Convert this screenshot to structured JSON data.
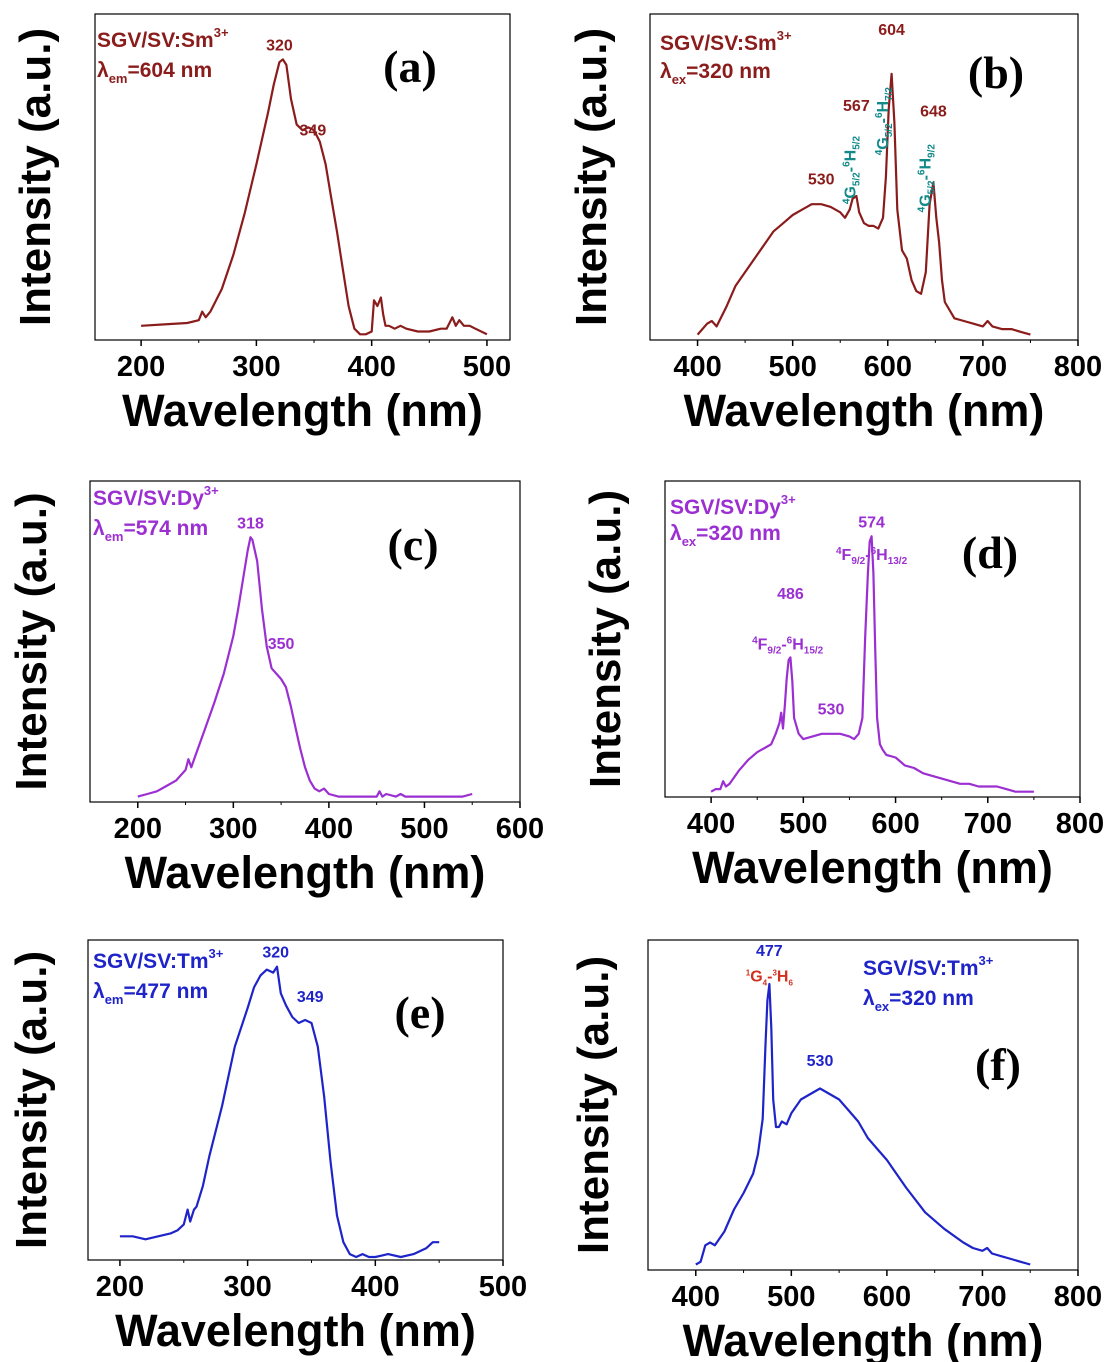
{
  "colors": {
    "sm": "#8b1c1c",
    "dy": "#9b2fd1",
    "tm": "#1f24c9",
    "teal": "#138a8a",
    "red": "#d1301f",
    "axis": "#000000"
  },
  "chart_data": [
    {
      "id": "a",
      "type": "line",
      "panel_label": "(a)",
      "color_key": "sm",
      "xlabel": "Wavelength (nm)",
      "ylabel": "Intensity (a.u.)",
      "xlim": [
        160,
        520
      ],
      "ylim": [
        0,
        1.15
      ],
      "xticks": [
        200,
        300,
        400,
        500
      ],
      "info_line1": "SGV/SV:Sm",
      "info_line1_sup": "3+",
      "info_line2_pre": "λ",
      "info_line2_sub": "em",
      "info_line2": "=604 nm",
      "peak_labels": [
        {
          "x": 320,
          "y": 1.0,
          "text": "320"
        },
        {
          "x": 349,
          "y": 0.7,
          "text": "349"
        }
      ],
      "series": [
        {
          "x": [
            200,
            220,
            240,
            250,
            253,
            256,
            260,
            270,
            280,
            290,
            300,
            310,
            315,
            320,
            323,
            326,
            330,
            335,
            340,
            345,
            350,
            355,
            360,
            365,
            370,
            375,
            380,
            385,
            390,
            395,
            400,
            402,
            405,
            408,
            410,
            412,
            415,
            420,
            425,
            430,
            440,
            450,
            460,
            465,
            470,
            473,
            476,
            480,
            485,
            490,
            500
          ],
          "y": [
            0.05,
            0.055,
            0.06,
            0.07,
            0.1,
            0.08,
            0.1,
            0.18,
            0.3,
            0.45,
            0.62,
            0.8,
            0.9,
            0.98,
            0.99,
            0.97,
            0.85,
            0.76,
            0.74,
            0.75,
            0.74,
            0.7,
            0.62,
            0.5,
            0.38,
            0.25,
            0.12,
            0.04,
            0.02,
            0.02,
            0.03,
            0.14,
            0.12,
            0.15,
            0.09,
            0.05,
            0.05,
            0.04,
            0.05,
            0.04,
            0.03,
            0.03,
            0.04,
            0.04,
            0.08,
            0.05,
            0.07,
            0.05,
            0.05,
            0.04,
            0.02
          ]
        }
      ]
    },
    {
      "id": "b",
      "type": "line",
      "panel_label": "(b)",
      "color_key": "sm",
      "xlabel": "Wavelength (nm)",
      "ylabel": "Intensity (a.u.)",
      "xlim": [
        350,
        800
      ],
      "ylim": [
        0,
        1.2
      ],
      "xticks": [
        400,
        500,
        600,
        700,
        800
      ],
      "info_line1": "SGV/SV:Sm",
      "info_line1_sup": "3+",
      "info_line2_pre": "λ",
      "info_line2_sub": "ex",
      "info_line2": "=320 nm",
      "peak_labels": [
        {
          "x": 530,
          "y": 0.55,
          "text": "530"
        },
        {
          "x": 567,
          "y": 0.82,
          "text": "567"
        },
        {
          "x": 604,
          "y": 1.1,
          "text": "604"
        },
        {
          "x": 648,
          "y": 0.8,
          "text": "648"
        }
      ],
      "transitions": [
        {
          "x": 566,
          "y": 0.5,
          "pre": "4",
          "a": "G",
          "asub": "5/2",
          "dash": "-",
          "pre2": "6",
          "b": "H",
          "bsub": "5/2"
        },
        {
          "x": 600,
          "y": 0.68,
          "pre": "4",
          "a": "G",
          "asub": "5/2",
          "dash": "-",
          "pre2": "6",
          "b": "H",
          "bsub": "7/2"
        },
        {
          "x": 645,
          "y": 0.47,
          "pre": "4",
          "a": "G",
          "asub": "5/2",
          "dash": "-",
          "pre2": "6",
          "b": "H",
          "bsub": "9/2"
        }
      ],
      "series": [
        {
          "x": [
            400,
            410,
            415,
            420,
            430,
            440,
            450,
            460,
            470,
            480,
            490,
            500,
            510,
            520,
            530,
            540,
            550,
            555,
            560,
            563,
            567,
            570,
            575,
            580,
            585,
            590,
            595,
            598,
            601,
            604,
            607,
            610,
            615,
            620,
            625,
            630,
            635,
            640,
            644,
            648,
            651,
            654,
            657,
            660,
            670,
            680,
            690,
            700,
            705,
            710,
            720,
            730,
            740,
            750
          ],
          "y": [
            0.02,
            0.06,
            0.07,
            0.05,
            0.12,
            0.2,
            0.25,
            0.3,
            0.35,
            0.4,
            0.43,
            0.46,
            0.48,
            0.5,
            0.5,
            0.49,
            0.47,
            0.45,
            0.48,
            0.52,
            0.53,
            0.47,
            0.43,
            0.42,
            0.42,
            0.41,
            0.45,
            0.6,
            0.85,
            0.98,
            0.8,
            0.48,
            0.33,
            0.3,
            0.22,
            0.18,
            0.17,
            0.25,
            0.5,
            0.58,
            0.45,
            0.36,
            0.22,
            0.14,
            0.08,
            0.07,
            0.06,
            0.05,
            0.07,
            0.05,
            0.04,
            0.04,
            0.03,
            0.02
          ]
        }
      ]
    },
    {
      "id": "c",
      "type": "line",
      "panel_label": "(c)",
      "color_key": "dy",
      "xlabel": "Wavelength (nm)",
      "ylabel": "Intensity (a.u.)",
      "xlim": [
        150,
        600
      ],
      "ylim": [
        0,
        1.2
      ],
      "xticks": [
        200,
        300,
        400,
        500,
        600
      ],
      "info_line1": "SGV/SV:Dy",
      "info_line1_sup": "3+",
      "info_line2_pre": "λ",
      "info_line2_sub": "em",
      "info_line2": "=574 nm",
      "peak_labels": [
        {
          "x": 318,
          "y": 1.0,
          "text": "318"
        },
        {
          "x": 350,
          "y": 0.55,
          "text": "350"
        }
      ],
      "series": [
        {
          "x": [
            200,
            210,
            220,
            230,
            240,
            250,
            253,
            256,
            260,
            270,
            280,
            290,
            300,
            305,
            310,
            315,
            318,
            320,
            325,
            330,
            335,
            340,
            345,
            350,
            355,
            360,
            365,
            370,
            375,
            380,
            385,
            390,
            395,
            400,
            410,
            420,
            440,
            450,
            453,
            456,
            460,
            470,
            475,
            480,
            500,
            520,
            540,
            550
          ],
          "y": [
            0.02,
            0.03,
            0.04,
            0.06,
            0.08,
            0.12,
            0.16,
            0.13,
            0.17,
            0.27,
            0.37,
            0.48,
            0.62,
            0.72,
            0.83,
            0.94,
            0.99,
            0.98,
            0.9,
            0.72,
            0.58,
            0.5,
            0.48,
            0.46,
            0.43,
            0.36,
            0.28,
            0.2,
            0.13,
            0.08,
            0.05,
            0.04,
            0.05,
            0.03,
            0.02,
            0.02,
            0.02,
            0.02,
            0.04,
            0.02,
            0.03,
            0.02,
            0.03,
            0.02,
            0.02,
            0.02,
            0.02,
            0.03
          ]
        }
      ]
    },
    {
      "id": "d",
      "type": "line",
      "panel_label": "(d)",
      "color_key": "dy",
      "xlabel": "Wavelength (nm)",
      "ylabel": "Intensity (a.u.)",
      "xlim": [
        350,
        800
      ],
      "ylim": [
        0,
        1.2
      ],
      "xticks": [
        400,
        500,
        600,
        700,
        800
      ],
      "info_line1": "SGV/SV:Dy",
      "info_line1_sup": "3+",
      "info_line2_pre": "λ",
      "info_line2_sub": "ex",
      "info_line2": "=320 nm",
      "peak_labels": [
        {
          "x": 486,
          "y": 0.73,
          "text": "486"
        },
        {
          "x": 530,
          "y": 0.29,
          "text": "530"
        },
        {
          "x": 574,
          "y": 1.0,
          "text": "574"
        }
      ],
      "transitions": [
        {
          "x": 483,
          "y": 0.56,
          "pre": "4",
          "a": "F",
          "asub": "9/2",
          "dash": "-",
          "pre2": "6",
          "b": "H",
          "bsub": "15/2",
          "horizontal": true
        },
        {
          "x": 574,
          "y": 0.9,
          "pre": "4",
          "a": "F",
          "asub": "9/2",
          "dash": "-",
          "pre2": "6",
          "b": "H",
          "bsub": "13/2",
          "horizontal": true
        }
      ],
      "series": [
        {
          "x": [
            400,
            405,
            410,
            413,
            416,
            420,
            430,
            440,
            450,
            460,
            465,
            470,
            474,
            476,
            478,
            480,
            482,
            484,
            486,
            488,
            490,
            495,
            500,
            510,
            520,
            530,
            540,
            550,
            555,
            560,
            564,
            567,
            570,
            572,
            574,
            576,
            578,
            580,
            583,
            586,
            590,
            600,
            610,
            620,
            630,
            640,
            650,
            660,
            670,
            680,
            690,
            700,
            710,
            720,
            730,
            740,
            750
          ],
          "y": [
            0.02,
            0.03,
            0.03,
            0.06,
            0.04,
            0.05,
            0.1,
            0.14,
            0.17,
            0.19,
            0.2,
            0.24,
            0.28,
            0.32,
            0.26,
            0.35,
            0.45,
            0.52,
            0.53,
            0.44,
            0.3,
            0.24,
            0.22,
            0.23,
            0.24,
            0.24,
            0.24,
            0.23,
            0.22,
            0.24,
            0.3,
            0.6,
            0.85,
            0.97,
            0.99,
            0.85,
            0.55,
            0.3,
            0.2,
            0.18,
            0.16,
            0.15,
            0.12,
            0.11,
            0.09,
            0.08,
            0.07,
            0.06,
            0.05,
            0.05,
            0.04,
            0.04,
            0.04,
            0.03,
            0.02,
            0.02,
            0.02
          ]
        }
      ]
    },
    {
      "id": "e",
      "type": "line",
      "panel_label": "(e)",
      "color_key": "tm",
      "xlabel": "Wavelength (nm)",
      "ylabel": "Intensity (a.u.)",
      "xlim": [
        175,
        500
      ],
      "ylim": [
        0,
        1.08
      ],
      "xticks": [
        200,
        300,
        400,
        500
      ],
      "info_line1": "SGV/SV:Tm",
      "info_line1_sup": "3+",
      "info_line2_pre": "λ",
      "info_line2_sub": "em",
      "info_line2": "=477 nm",
      "peak_labels": [
        {
          "x": 322,
          "y": 1.0,
          "text": "320"
        },
        {
          "x": 349,
          "y": 0.85,
          "text": "349"
        }
      ],
      "series": [
        {
          "x": [
            200,
            210,
            220,
            230,
            240,
            245,
            250,
            253,
            255,
            258,
            260,
            265,
            270,
            280,
            290,
            300,
            305,
            310,
            315,
            320,
            323,
            326,
            330,
            335,
            340,
            345,
            350,
            355,
            360,
            365,
            370,
            375,
            380,
            385,
            390,
            395,
            400,
            410,
            420,
            430,
            440,
            445,
            450
          ],
          "y": [
            0.08,
            0.08,
            0.07,
            0.08,
            0.09,
            0.1,
            0.12,
            0.17,
            0.13,
            0.17,
            0.18,
            0.25,
            0.35,
            0.52,
            0.72,
            0.85,
            0.92,
            0.96,
            0.98,
            0.97,
            0.99,
            0.9,
            0.86,
            0.82,
            0.8,
            0.81,
            0.8,
            0.72,
            0.55,
            0.33,
            0.15,
            0.06,
            0.02,
            0.01,
            0.02,
            0.01,
            0.01,
            0.02,
            0.01,
            0.02,
            0.04,
            0.06,
            0.06
          ]
        }
      ]
    },
    {
      "id": "f",
      "type": "line",
      "panel_label": "(f)",
      "color_key": "tm",
      "xlabel": "Wavelength (nm)",
      "ylabel": "Intensity (a.u.)",
      "xlim": [
        350,
        800
      ],
      "ylim": [
        0,
        1.2
      ],
      "xticks": [
        400,
        500,
        600,
        700,
        800
      ],
      "info_line1": "SGV/SV:Tm",
      "info_line1_sup": "3+",
      "info_line2_pre": "λ",
      "info_line2_sub": "ex",
      "info_line2": "=320 nm",
      "peak_labels": [
        {
          "x": 477,
          "y": 1.12,
          "text": "477"
        },
        {
          "x": 530,
          "y": 0.72,
          "text": "530"
        }
      ],
      "transitions": [
        {
          "x": 477,
          "y": 1.05,
          "pre": "1",
          "a": "G",
          "asub": "4",
          "dash": "-",
          "pre2": "3",
          "b": "H",
          "bsub": "6",
          "horizontal": true,
          "small": true,
          "color_key": "red"
        }
      ],
      "series": [
        {
          "x": [
            400,
            405,
            410,
            415,
            420,
            430,
            440,
            450,
            460,
            465,
            470,
            473,
            475,
            477,
            479,
            481,
            484,
            487,
            490,
            495,
            500,
            510,
            520,
            530,
            540,
            550,
            560,
            570,
            580,
            590,
            600,
            620,
            640,
            660,
            680,
            690,
            700,
            705,
            710,
            720,
            730,
            740,
            750
          ],
          "y": [
            0.02,
            0.03,
            0.09,
            0.1,
            0.09,
            0.14,
            0.22,
            0.28,
            0.35,
            0.42,
            0.55,
            0.82,
            0.98,
            1.04,
            0.88,
            0.62,
            0.52,
            0.52,
            0.54,
            0.53,
            0.57,
            0.62,
            0.64,
            0.66,
            0.64,
            0.62,
            0.58,
            0.54,
            0.48,
            0.44,
            0.4,
            0.3,
            0.21,
            0.15,
            0.1,
            0.08,
            0.07,
            0.08,
            0.06,
            0.05,
            0.04,
            0.03,
            0.02
          ]
        }
      ]
    }
  ]
}
